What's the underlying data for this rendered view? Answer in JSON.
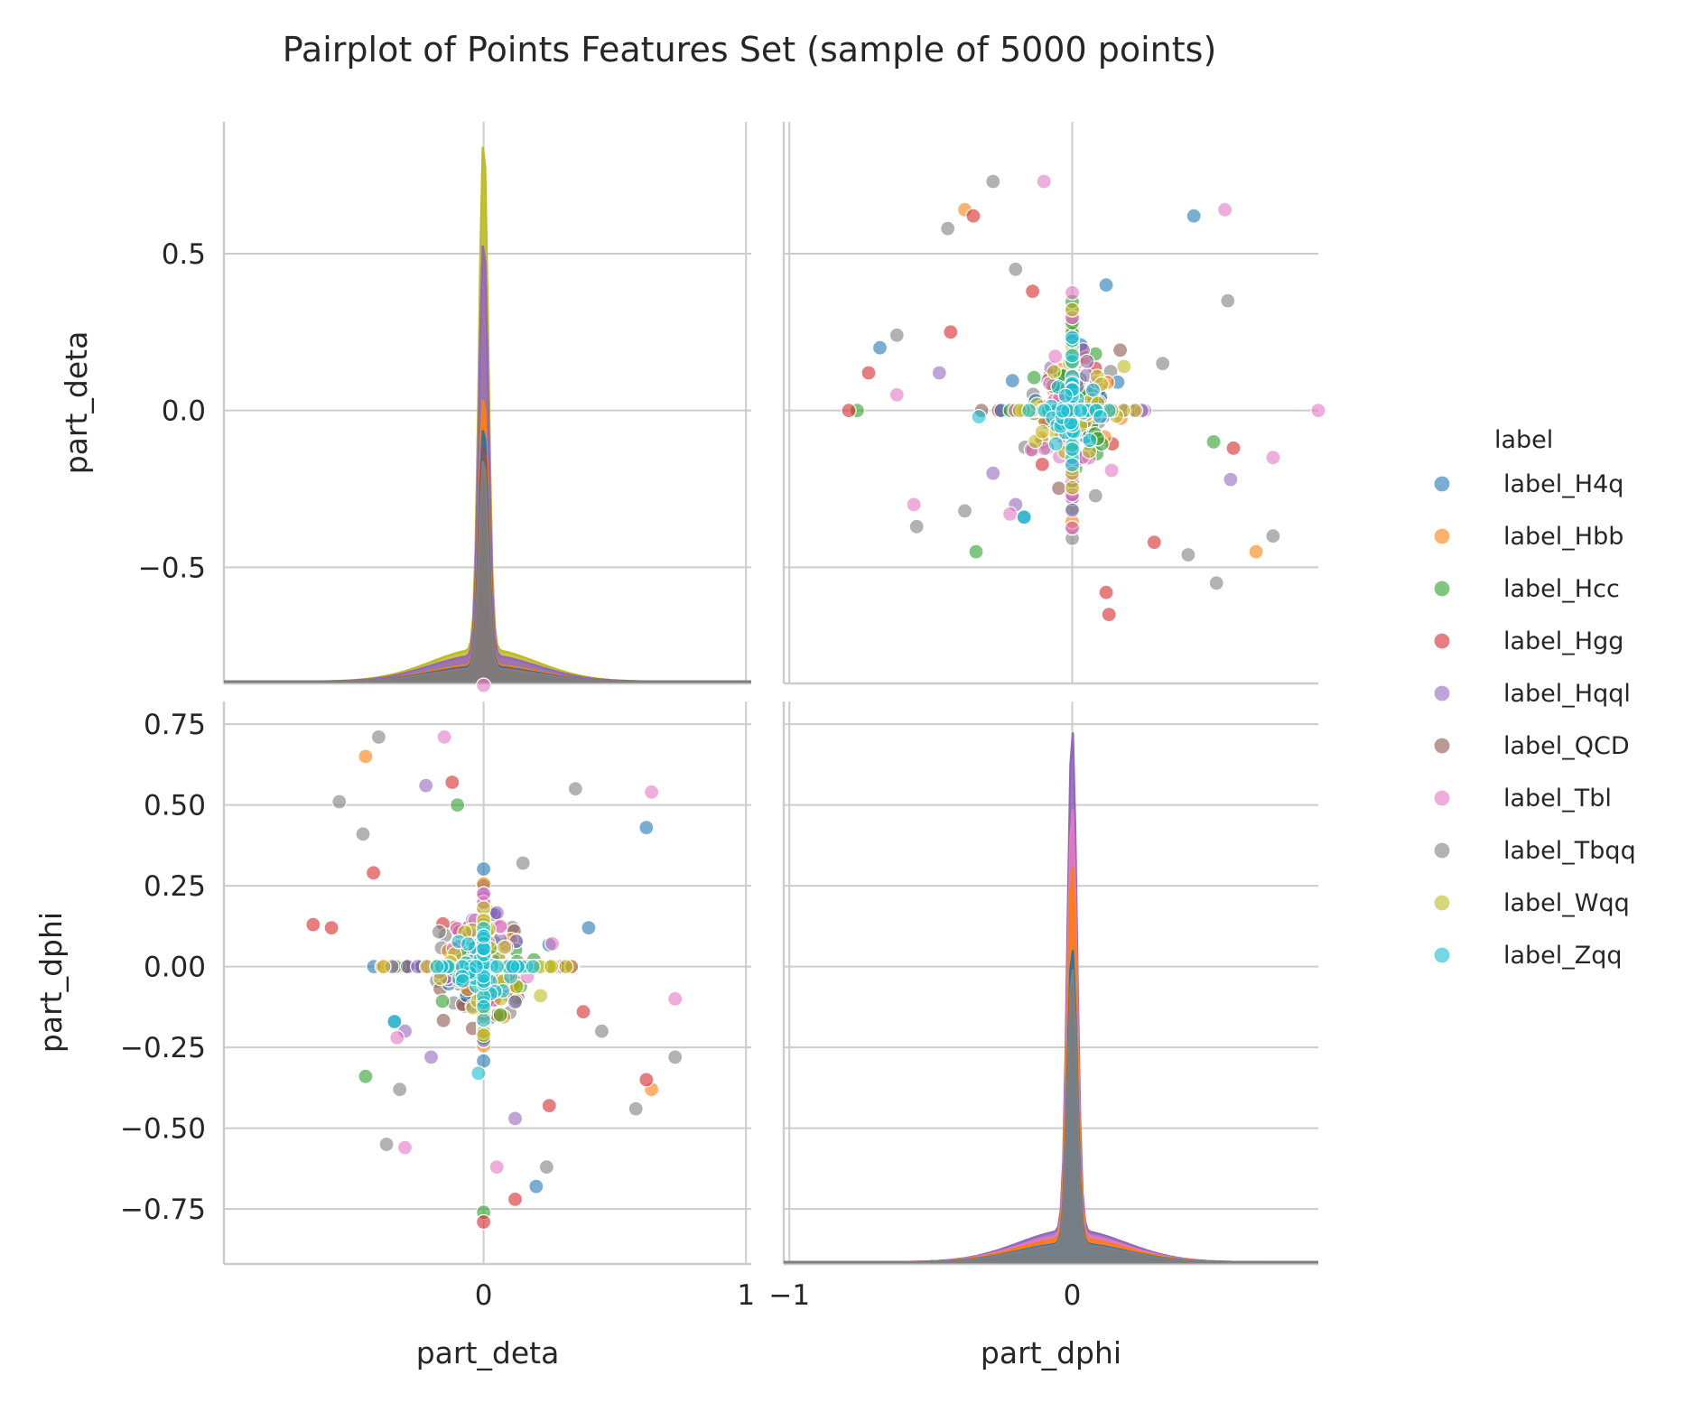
{
  "chart_data": {
    "type": "pairplot",
    "title": "Pairplot of Points Features Set (sample of 5000 points)",
    "variables": [
      "part_deta",
      "part_dphi"
    ],
    "grid": true,
    "legend": {
      "title": "label",
      "placement": "right",
      "entries": [
        "label_H4q",
        "label_Hbb",
        "label_Hcc",
        "label_Hgg",
        "label_Hqql",
        "label_QCD",
        "label_Tbl",
        "label_Tbqq",
        "label_Wqq",
        "label_Zqq"
      ]
    },
    "colors": [
      "#1f77b4",
      "#ff7f0e",
      "#2ca02c",
      "#d62728",
      "#9467bd",
      "#8c564b",
      "#e377c2",
      "#7f7f7f",
      "#bcbd22",
      "#17becf"
    ],
    "axes": {
      "part_deta": {
        "range": [
          -0.99,
          1.02
        ],
        "ticks": [
          0,
          1
        ],
        "tick_labels": [
          "0",
          "1"
        ]
      },
      "part_dphi": {
        "range": [
          -1.02,
          0.87
        ],
        "ticks": [
          -1,
          0
        ],
        "tick_labels": [
          "−1",
          "0"
        ]
      },
      "row_part_deta": {
        "range": [
          -0.87,
          0.92
        ],
        "ticks": [
          0.5,
          0.0,
          -0.5
        ],
        "tick_labels": [
          "0.5",
          "0.0",
          "−0.5"
        ]
      },
      "row_part_dphi": {
        "range": [
          -0.92,
          0.82
        ],
        "ticks": [
          0.75,
          0.5,
          0.25,
          0.0,
          -0.25,
          -0.5,
          -0.75
        ],
        "tick_labels": [
          "0.75",
          "0.50",
          "0.25",
          "0.00",
          "−0.25",
          "−0.50",
          "−0.75"
        ]
      }
    },
    "diagonal": [
      {
        "variable": "part_deta",
        "kind": "kde",
        "peaks": {
          "label_Wqq": 0.87,
          "label_Hqql": 0.55,
          "label_Hbb": 0.05,
          "label_H4q": -0.05,
          "label_QCD": -0.1,
          "label_Tbqq": -0.15
        }
      },
      {
        "variable": "part_dphi",
        "kind": "kde",
        "peaks": {
          "label_Hqql": 0.74,
          "label_Tbl": 0.5,
          "label_Hbb": 0.32,
          "label_H4q": 0.06,
          "label_Tbqq": 0.0
        }
      }
    ],
    "scatter_outliers": [
      {
        "label": "label_H4q",
        "deta": 0.62,
        "dphi": 0.43
      },
      {
        "label": "label_Tbl",
        "deta": 0.64,
        "dphi": 0.54
      },
      {
        "label": "label_Tbqq",
        "deta": 0.35,
        "dphi": 0.55
      },
      {
        "label": "label_Tbqq",
        "deta": -0.55,
        "dphi": 0.51
      },
      {
        "label": "label_Hbb",
        "deta": -0.45,
        "dphi": 0.65
      },
      {
        "label": "label_Tbqq",
        "deta": -0.4,
        "dphi": 0.71
      },
      {
        "label": "label_Tbl",
        "deta": -0.15,
        "dphi": 0.71
      },
      {
        "label": "label_Hbb",
        "deta": 0.64,
        "dphi": -0.38
      },
      {
        "label": "label_Tbqq",
        "deta": 0.58,
        "dphi": -0.44
      },
      {
        "label": "label_Tbqq",
        "deta": 0.73,
        "dphi": -0.28
      },
      {
        "label": "label_Tbl",
        "deta": 0.73,
        "dphi": -0.1
      },
      {
        "label": "label_H4q",
        "deta": 0.2,
        "dphi": -0.68
      },
      {
        "label": "label_Hgg",
        "deta": 0.12,
        "dphi": -0.72
      },
      {
        "label": "label_Tbqq",
        "deta": 0.24,
        "dphi": -0.62
      },
      {
        "label": "label_Hgg",
        "deta": 0.25,
        "dphi": -0.43
      },
      {
        "label": "label_Tbl",
        "deta": -0.3,
        "dphi": -0.56
      },
      {
        "label": "label_Tbqq",
        "deta": -0.37,
        "dphi": -0.55
      },
      {
        "label": "label_Hcc",
        "deta": -0.45,
        "dphi": -0.34
      },
      {
        "label": "label_Hgg",
        "deta": -0.58,
        "dphi": 0.12
      },
      {
        "label": "label_Hgg",
        "deta": -0.65,
        "dphi": 0.13
      },
      {
        "label": "label_Hgg",
        "deta": -0.42,
        "dphi": 0.29
      },
      {
        "label": "label_Tbqq",
        "deta": -0.46,
        "dphi": 0.41
      },
      {
        "label": "label_Hqql",
        "deta": -0.22,
        "dphi": 0.56
      },
      {
        "label": "label_Hgg",
        "deta": -0.12,
        "dphi": 0.57
      },
      {
        "label": "label_Hcc",
        "deta": -0.1,
        "dphi": 0.5
      },
      {
        "label": "label_Tbqq",
        "deta": 0.15,
        "dphi": 0.32
      },
      {
        "label": "label_H4q",
        "deta": 0.4,
        "dphi": 0.12
      },
      {
        "label": "label_Tbqq",
        "deta": 0.45,
        "dphi": -0.2
      },
      {
        "label": "label_Hgg",
        "deta": 0.38,
        "dphi": -0.14
      },
      {
        "label": "label_Hgg",
        "deta": 0.62,
        "dphi": -0.35
      },
      {
        "label": "label_Tbqq",
        "deta": -0.32,
        "dphi": -0.38
      },
      {
        "label": "label_Hqql",
        "deta": -0.3,
        "dphi": -0.2
      },
      {
        "label": "label_Tbl",
        "deta": -0.33,
        "dphi": -0.22
      },
      {
        "label": "label_H4q",
        "deta": -0.34,
        "dphi": -0.17
      },
      {
        "label": "label_Zqq",
        "deta": -0.34,
        "dphi": -0.17
      },
      {
        "label": "label_Hqql",
        "deta": -0.2,
        "dphi": -0.28
      },
      {
        "label": "label_Tbl",
        "deta": 0.05,
        "dphi": -0.62
      },
      {
        "label": "label_Hqql",
        "deta": 0.12,
        "dphi": -0.47
      },
      {
        "label": "label_Zqq",
        "deta": -0.02,
        "dphi": -0.33
      },
      {
        "label": "label_Hcc",
        "deta": 0.0,
        "dphi": -0.76
      },
      {
        "label": "label_Hgg",
        "deta": 0.0,
        "dphi": -0.79
      },
      {
        "label": "label_Tbl",
        "deta": 0.0,
        "dphi": 0.87
      }
    ]
  }
}
